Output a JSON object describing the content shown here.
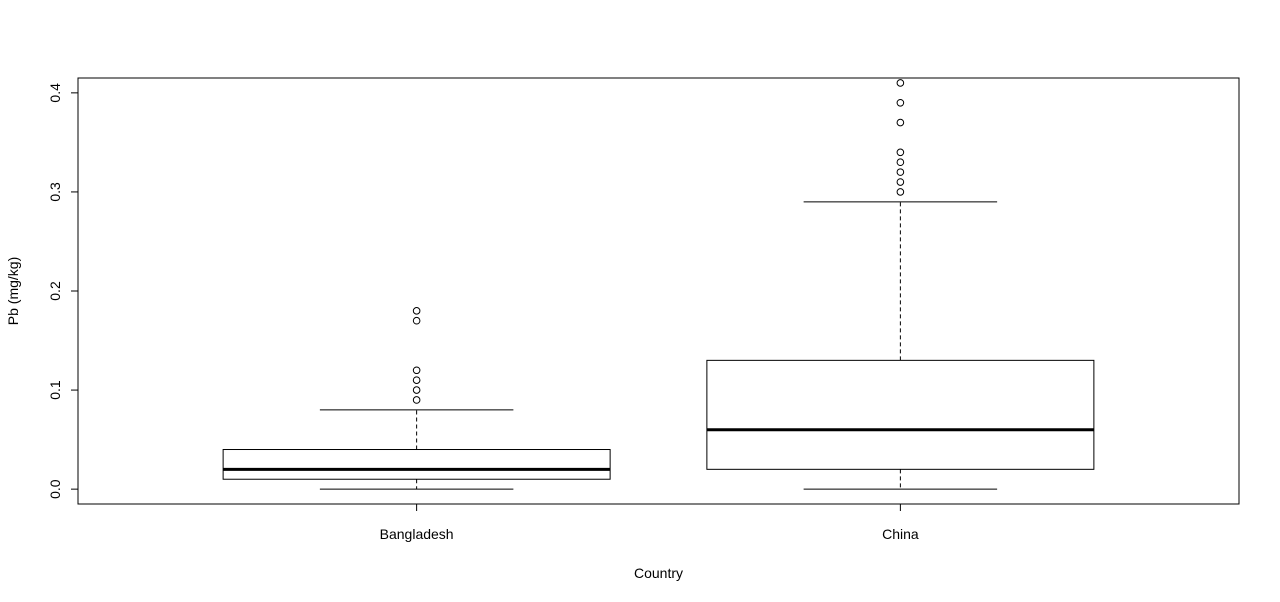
{
  "chart_data": {
    "type": "boxplot",
    "xlabel": "Country",
    "ylabel": "Pb (mg/kg)",
    "ylim": [
      -0.015,
      0.415
    ],
    "yticks": [
      "0.0",
      "0.1",
      "0.2",
      "0.3",
      "0.4"
    ],
    "ytick_values": [
      0.0,
      0.1,
      0.2,
      0.3,
      0.4
    ],
    "grid": false,
    "categories": [
      "Bangladesh",
      "China"
    ],
    "boxes": [
      {
        "name": "Bangladesh",
        "whisker_low": 0.0,
        "q1": 0.01,
        "median": 0.02,
        "q3": 0.04,
        "whisker_high": 0.08,
        "outliers": [
          0.09,
          0.1,
          0.11,
          0.12,
          0.17,
          0.18
        ]
      },
      {
        "name": "China",
        "whisker_low": 0.0,
        "q1": 0.02,
        "median": 0.06,
        "q3": 0.13,
        "whisker_high": 0.29,
        "outliers": [
          0.3,
          0.31,
          0.32,
          0.33,
          0.34,
          0.37,
          0.39,
          0.41
        ]
      }
    ]
  }
}
